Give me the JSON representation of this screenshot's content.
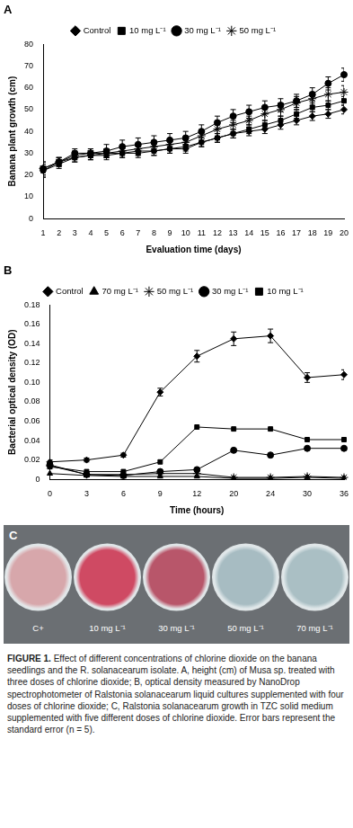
{
  "chart_data": [
    {
      "type": "line",
      "title": "A",
      "x_label": "Evaluation time (days)",
      "y_label": "Banana plant growth (cm)",
      "categories": [
        1,
        2,
        3,
        4,
        5,
        6,
        7,
        8,
        9,
        10,
        11,
        12,
        13,
        14,
        15,
        16,
        17,
        18,
        19,
        20
      ],
      "ylim": [
        0,
        80
      ],
      "yticks": [
        0,
        10,
        20,
        30,
        40,
        50,
        60,
        70,
        80
      ],
      "grid": false,
      "legend": "top",
      "series": [
        {
          "name": "Control",
          "color": "#000000",
          "marker": "diamond",
          "values": [
            22,
            26,
            28,
            29,
            30,
            30,
            31,
            31,
            32,
            32,
            35,
            37,
            39,
            40,
            41,
            43,
            45,
            47,
            48,
            50
          ],
          "errors": [
            3,
            2,
            2,
            2,
            2,
            2,
            2,
            2,
            2,
            2,
            2,
            2,
            2,
            2,
            2,
            2,
            2,
            2,
            2,
            2
          ]
        },
        {
          "name": "10 mg L⁻¹",
          "color": "#000000",
          "marker": "square",
          "values": [
            22,
            25,
            28,
            29,
            29,
            30,
            30,
            31,
            32,
            33,
            35,
            37,
            39,
            41,
            43,
            45,
            48,
            51,
            52,
            54
          ],
          "errors": [
            3,
            2,
            2,
            2,
            2,
            2,
            2,
            2,
            2,
            2,
            2,
            2,
            2,
            2,
            2,
            2,
            2,
            2,
            2,
            2
          ]
        },
        {
          "name": "30 mg L⁻¹",
          "color": "#000000",
          "marker": "circle",
          "values": [
            23,
            26,
            30,
            30,
            31,
            33,
            34,
            35,
            36,
            37,
            40,
            44,
            47,
            49,
            51,
            52,
            54,
            57,
            62,
            66
          ],
          "errors": [
            3,
            2,
            2,
            2,
            3,
            3,
            3,
            3,
            3,
            3,
            3,
            3,
            3,
            3,
            3,
            3,
            3,
            3,
            3,
            3
          ]
        },
        {
          "name": "50 mg L⁻¹",
          "color": "#000000",
          "marker": "star",
          "values": [
            23,
            26,
            29,
            30,
            30,
            31,
            32,
            33,
            34,
            35,
            38,
            41,
            43,
            45,
            48,
            50,
            53,
            55,
            57,
            58
          ],
          "errors": [
            3,
            2,
            2,
            2,
            2,
            2,
            2,
            2,
            2,
            2,
            2,
            2,
            2,
            2,
            3,
            3,
            3,
            3,
            3,
            3
          ]
        }
      ]
    },
    {
      "type": "line",
      "title": "B",
      "x_label": "Time (hours)",
      "y_label": "Bacterial optical density (OD)",
      "categories": [
        0,
        3,
        6,
        9,
        12,
        20,
        24,
        30,
        36
      ],
      "ylim": [
        0,
        0.18
      ],
      "yticks": [
        0,
        0.02,
        0.04,
        0.06,
        0.08,
        {
          "value": 0.1,
          "label": "0.10"
        },
        0.12,
        0.14,
        0.16,
        0.18
      ],
      "grid": false,
      "legend": "top",
      "series": [
        {
          "name": "Control",
          "color": "#000000",
          "marker": "diamond",
          "values": [
            0.018,
            0.02,
            0.025,
            0.09,
            0.127,
            0.145,
            0.148,
            0.105,
            0.108
          ],
          "errors": [
            0.002,
            0.002,
            0.002,
            0.004,
            0.006,
            0.007,
            0.007,
            0.005,
            0.005
          ]
        },
        {
          "name": "70 mg L⁻¹",
          "color": "#000000",
          "marker": "triangle",
          "values": [
            0.006,
            0.004,
            0.003,
            0.003,
            0.003,
            0.001,
            0.001,
            0.002,
            0.001
          ]
        },
        {
          "name": "50 mg L⁻¹",
          "color": "#000000",
          "marker": "star",
          "values": [
            0.014,
            0.005,
            0.005,
            0.006,
            0.006,
            0.002,
            0.002,
            0.003,
            0.002
          ]
        },
        {
          "name": "30 mg L⁻¹",
          "color": "#000000",
          "marker": "circle",
          "values": [
            0.015,
            0.005,
            0.004,
            0.008,
            0.01,
            0.03,
            0.025,
            0.032,
            0.032
          ]
        },
        {
          "name": "10 mg L⁻¹",
          "color": "#000000",
          "marker": "square",
          "values": [
            0.013,
            0.008,
            0.008,
            0.018,
            0.054,
            0.052,
            0.052,
            0.041,
            0.041
          ]
        }
      ]
    }
  ],
  "photo_panel": {
    "title": "C",
    "labels": [
      "C+",
      "10 mg L⁻¹",
      "30 mg L⁻¹",
      "50 mg L⁻¹",
      "70 mg L⁻¹"
    ]
  },
  "caption": {
    "label": "FIGURE 1.",
    "text": "Effect of different concentrations of chlorine dioxide on the banana seedlings and the R. solanacearum isolate. A, height (cm) of Musa sp. treated with three doses of chlorine dioxide; B, optical density measured by NanoDrop spectrophotometer of Ralstonia solanacearum liquid cultures supplemented with four doses of chlorine dioxide; C, Ralstonia solanacearum growth in TZC solid medium supplemented with five different doses of chlorine dioxide. Error bars represent the standard error (n = 5)."
  }
}
